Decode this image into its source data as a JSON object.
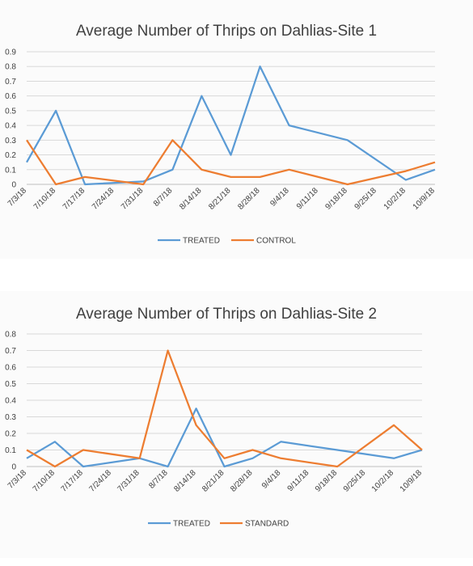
{
  "chart_data": [
    {
      "type": "line",
      "title": "Average Number of Thrips on Dahlias-Site 1",
      "categories": [
        "7/3/18",
        "7/10/18",
        "7/17/18",
        "7/24/18",
        "7/31/18",
        "8/7/18",
        "8/14/18",
        "8/21/18",
        "8/28/18",
        "9/4/18",
        "9/11/18",
        "9/18/18",
        "9/25/18",
        "10/2/18",
        "10/9/18"
      ],
      "ylim": [
        0,
        0.9
      ],
      "yticks": [
        "0",
        "0.1",
        "0.2",
        "0.3",
        "0.4",
        "0.5",
        "0.6",
        "0.7",
        "0.8",
        "0.9"
      ],
      "grid": true,
      "legend_position": "bottom",
      "series": [
        {
          "name": "TREATED",
          "color": "#5b9bd5",
          "points": [
            [
              "7/3/18",
              0.15
            ],
            [
              "7/10/18",
              0.5
            ],
            [
              "7/17/18",
              0.0
            ],
            [
              "7/31/18",
              0.02
            ],
            [
              "8/7/18",
              0.1
            ],
            [
              "8/14/18",
              0.6
            ],
            [
              "8/21/18",
              0.2
            ],
            [
              "8/28/18",
              0.8
            ],
            [
              "9/4/18",
              0.4
            ],
            [
              "9/18/18",
              0.3
            ],
            [
              "10/2/18",
              0.03
            ],
            [
              "10/9/18",
              0.1
            ]
          ]
        },
        {
          "name": "CONTROL",
          "color": "#ed7d31",
          "points": [
            [
              "7/3/18",
              0.3
            ],
            [
              "7/10/18",
              0.0
            ],
            [
              "7/17/18",
              0.05
            ],
            [
              "7/31/18",
              0.0
            ],
            [
              "8/7/18",
              0.3
            ],
            [
              "8/14/18",
              0.1
            ],
            [
              "8/21/18",
              0.05
            ],
            [
              "8/28/18",
              0.05
            ],
            [
              "9/4/18",
              0.1
            ],
            [
              "9/18/18",
              0.0
            ],
            [
              "10/2/18",
              0.09
            ],
            [
              "10/9/18",
              0.15
            ]
          ]
        }
      ]
    },
    {
      "type": "line",
      "title": "Average Number of Thrips on Dahlias-Site 2",
      "categories": [
        "7/3/18",
        "7/10/18",
        "7/17/18",
        "7/24/18",
        "7/31/18",
        "8/7/18",
        "8/14/18",
        "8/21/18",
        "8/28/18",
        "9/4/18",
        "9/11/18",
        "9/18/18",
        "9/25/18",
        "10/2/18",
        "10/9/18"
      ],
      "ylim": [
        0,
        0.8
      ],
      "yticks": [
        "0",
        "0.1",
        "0.2",
        "0.3",
        "0.4",
        "0.5",
        "0.6",
        "0.7",
        "0.8"
      ],
      "grid": true,
      "legend_position": "bottom",
      "series": [
        {
          "name": "TREATED",
          "color": "#5b9bd5",
          "points": [
            [
              "7/3/18",
              0.05
            ],
            [
              "7/10/18",
              0.15
            ],
            [
              "7/17/18",
              0.0
            ],
            [
              "7/31/18",
              0.05
            ],
            [
              "8/7/18",
              0.0
            ],
            [
              "8/14/18",
              0.35
            ],
            [
              "8/21/18",
              0.0
            ],
            [
              "8/28/18",
              0.05
            ],
            [
              "9/4/18",
              0.15
            ],
            [
              "9/18/18",
              0.1
            ],
            [
              "10/2/18",
              0.05
            ],
            [
              "10/9/18",
              0.1
            ]
          ]
        },
        {
          "name": "STANDARD",
          "color": "#ed7d31",
          "points": [
            [
              "7/3/18",
              0.1
            ],
            [
              "7/10/18",
              0.0
            ],
            [
              "7/17/18",
              0.1
            ],
            [
              "7/31/18",
              0.05
            ],
            [
              "8/7/18",
              0.7
            ],
            [
              "8/14/18",
              0.25
            ],
            [
              "8/21/18",
              0.05
            ],
            [
              "8/28/18",
              0.1
            ],
            [
              "9/4/18",
              0.05
            ],
            [
              "9/18/18",
              0.0
            ],
            [
              "10/2/18",
              0.25
            ],
            [
              "10/9/18",
              0.1
            ]
          ]
        }
      ]
    }
  ]
}
